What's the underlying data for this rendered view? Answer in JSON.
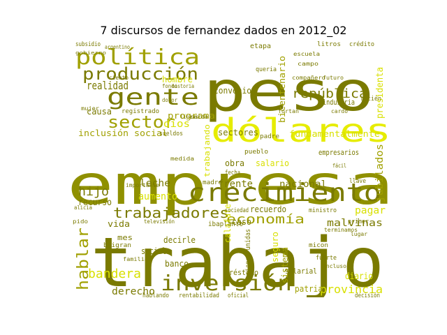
{
  "title": "7 discursos de fernandez dados en 2012_02",
  "palette": {
    "olive_dark": "#7a7a00",
    "olive": "#8f9000",
    "olive_mid": "#a0a000",
    "yellow": "#d8e000",
    "yellow_bright": "#e6ec00",
    "grey_olive": "#9a9a5a"
  },
  "words": [
    {
      "text": "peso",
      "color": "olive_dark"
    },
    {
      "text": "empresa",
      "color": "olive"
    },
    {
      "text": "trabajo",
      "color": "olive_dark"
    },
    {
      "text": "dólares",
      "color": "yellow_bright"
    },
    {
      "text": "crecimiento",
      "color": "olive_dark"
    },
    {
      "text": "política",
      "color": "olive_mid"
    },
    {
      "text": "gente",
      "color": "olive_dark"
    },
    {
      "text": "producción",
      "color": "olive_dark"
    },
    {
      "text": "inversión",
      "color": "olive_dark"
    },
    {
      "text": "sector",
      "color": "olive_mid"
    },
    {
      "text": "república",
      "color": "olive_dark"
    },
    {
      "text": "trabajadores",
      "color": "olive_dark"
    },
    {
      "text": "economía",
      "color": "olive_mid"
    },
    {
      "text": "hablar",
      "color": "olive_mid"
    },
    {
      "text": "bandera",
      "color": "yellow"
    },
    {
      "text": "hijo",
      "color": "olive_dark"
    },
    {
      "text": "realidad",
      "color": "olive_dark"
    },
    {
      "text": "leche",
      "color": "olive_dark"
    },
    {
      "text": "frente",
      "color": "olive_dark"
    },
    {
      "text": "programa",
      "color": "olive_mid"
    },
    {
      "text": "fundamentalmente",
      "color": "yellow"
    },
    {
      "text": "inclusión social",
      "color": "olive_mid"
    },
    {
      "text": "malvinas",
      "color": "olive_dark"
    },
    {
      "text": "derecho",
      "color": "olive_dark"
    },
    {
      "text": "provincia",
      "color": "yellow"
    },
    {
      "text": "pagar",
      "color": "yellow"
    },
    {
      "text": "jubilados",
      "color": "olive_mid"
    },
    {
      "text": "recurso",
      "color": "olive_dark"
    },
    {
      "text": "vida",
      "color": "olive_dark"
    },
    {
      "text": "dios",
      "color": "yellow"
    },
    {
      "text": "aumento",
      "color": "yellow"
    },
    {
      "text": "nacional",
      "color": "olive_dark"
    },
    {
      "text": "presidenta",
      "color": "yellow"
    },
    {
      "text": "bicentenario",
      "color": "olive_mid"
    },
    {
      "text": "convenio",
      "color": "olive_dark"
    },
    {
      "text": "sectores",
      "color": "olive_dark"
    },
    {
      "text": "recuerdo",
      "color": "olive_dark"
    },
    {
      "text": "salario",
      "color": "yellow"
    },
    {
      "text": "obra",
      "color": "olive_dark"
    },
    {
      "text": "calafate",
      "color": "yellow"
    },
    {
      "text": "decirle",
      "color": "olive_dark"
    },
    {
      "text": "seguro",
      "color": "yellow"
    },
    {
      "text": "diario",
      "color": "yellow"
    },
    {
      "text": "sistema",
      "color": "olive_mid"
    },
    {
      "text": "patria",
      "color": "olive_mid"
    },
    {
      "text": "banco",
      "color": "olive_dark"
    },
    {
      "text": "social",
      "color": "olive_dark"
    },
    {
      "text": "salarial",
      "color": "olive_dark"
    },
    {
      "text": "préstamo",
      "color": "olive_dark"
    },
    {
      "text": "caso",
      "color": "olive_dark"
    },
    {
      "text": "hombre",
      "color": "yellow"
    },
    {
      "text": "causa",
      "color": "olive_dark"
    },
    {
      "text": "empresarios",
      "color": "olive_dark"
    },
    {
      "text": "mes",
      "color": "olive_dark"
    },
    {
      "text": "industria",
      "color": "olive_dark"
    },
    {
      "text": "etapa",
      "color": "olive_dark"
    },
    {
      "text": "queria",
      "color": "olive_dark"
    },
    {
      "text": "pueblo",
      "color": "olive_dark"
    },
    {
      "text": "padre",
      "color": "olive_dark"
    },
    {
      "text": "madre",
      "color": "olive_dark"
    },
    {
      "text": "llave",
      "color": "olive_dark"
    },
    {
      "text": "fondo",
      "color": "olive_dark"
    },
    {
      "text": "litros",
      "color": "olive_dark"
    },
    {
      "text": "crédito",
      "color": "olive_dark"
    },
    {
      "text": "sueldos",
      "color": "olive_dark"
    },
    {
      "text": "ministro",
      "color": "olive_dark"
    },
    {
      "text": "primer",
      "color": "olive_dark"
    },
    {
      "text": "registrado",
      "color": "olive_dark"
    },
    {
      "text": "ibaplanto",
      "color": "olive_dark"
    },
    {
      "text": "sociedad",
      "color": "olive_dark"
    },
    {
      "text": "historia",
      "color": "olive_dark"
    },
    {
      "text": "fecha",
      "color": "olive_dark"
    },
    {
      "text": "hablando",
      "color": "olive_dark"
    },
    {
      "text": "rentabilidad",
      "color": "olive_dark"
    },
    {
      "text": "naciones unidas",
      "color": "olive_dark"
    },
    {
      "text": "oficial",
      "color": "olive_dark"
    },
    {
      "text": "decisión",
      "color": "olive_dark"
    },
    {
      "text": "subsidio",
      "color": "olive_dark"
    },
    {
      "text": "televisión",
      "color": "olive_dark"
    },
    {
      "text": "argentino",
      "color": "olive_dark"
    },
    {
      "text": "caída",
      "color": "olive_dark"
    },
    {
      "text": "fácil",
      "color": "olive_dark"
    },
    {
      "text": "mujer",
      "color": "olive_dark"
    },
    {
      "text": "alicia",
      "color": "olive_dark"
    },
    {
      "text": "dolor",
      "color": "olive_dark"
    },
    {
      "text": "líneas",
      "color": "olive_dark"
    },
    {
      "text": "pido",
      "color": "olive_dark"
    },
    {
      "text": "lugar",
      "color": "olive_dark"
    },
    {
      "text": "ciento",
      "color": "olive_dark"
    },
    {
      "text": "trabajando",
      "color": "yellow"
    },
    {
      "text": "fortan",
      "color": "olive_dark"
    },
    {
      "text": "cardo",
      "color": "olive_dark"
    },
    {
      "text": "fuerte",
      "color": "olive_dark"
    },
    {
      "text": "micon",
      "color": "olive_dark"
    },
    {
      "text": "recién",
      "color": "olive_dark"
    },
    {
      "text": "brigran",
      "color": "olive_dark"
    },
    {
      "text": "futuro",
      "color": "olive_dark"
    },
    {
      "text": "campo",
      "color": "olive_dark"
    },
    {
      "text": "importante",
      "color": "olive_dark"
    },
    {
      "text": "medida",
      "color": "olive_dark"
    },
    {
      "text": "escuela",
      "color": "olive_dark"
    },
    {
      "text": "gobierno",
      "color": "olive_dark"
    },
    {
      "text": "familia",
      "color": "olive_dark"
    },
    {
      "text": "compañero",
      "color": "olive_dark"
    },
    {
      "text": "terminamos",
      "color": "olive_dark"
    },
    {
      "text": "incluso",
      "color": "olive_dark"
    }
  ]
}
